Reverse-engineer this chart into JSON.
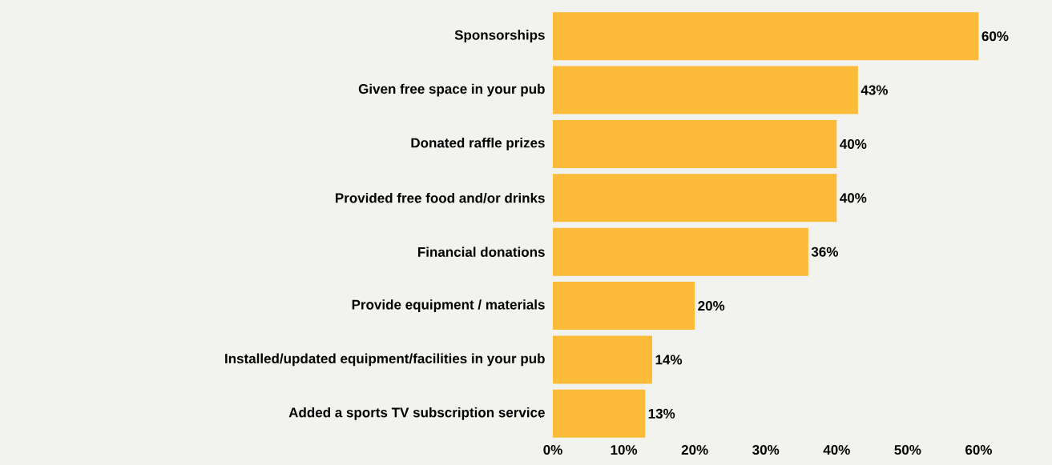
{
  "chart_data": {
    "type": "bar",
    "orientation": "horizontal",
    "categories": [
      "Sponsorships",
      "Given free space in your pub",
      "Donated raffle prizes",
      "Provided free food and/or drinks",
      "Financial donations",
      "Provide equipment / materials",
      "Installed/updated equipment/facilities in your pub",
      "Added a sports TV subscription service"
    ],
    "values": [
      60,
      43,
      40,
      40,
      36,
      20,
      14,
      13
    ],
    "value_labels": [
      "60%",
      "43%",
      "40%",
      "40%",
      "36%",
      "20%",
      "14%",
      "13%"
    ],
    "color": "#fdbb3a",
    "xlim": [
      0,
      70
    ],
    "xticks": [
      {
        "value": 0,
        "label": "0%"
      },
      {
        "value": 10,
        "label": "10%"
      },
      {
        "value": 20,
        "label": "20%"
      },
      {
        "value": 30,
        "label": "30%"
      },
      {
        "value": 40,
        "label": "40%"
      },
      {
        "value": 50,
        "label": "50%"
      },
      {
        "value": 60,
        "label": "60%"
      }
    ],
    "grid": false
  }
}
